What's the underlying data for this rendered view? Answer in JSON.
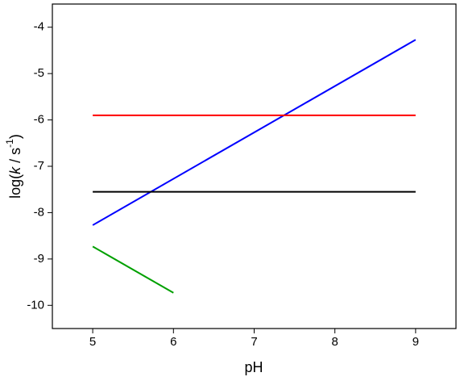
{
  "chart_data": {
    "type": "line",
    "x_label": "pH",
    "y_label": {
      "prefix": "log(",
      "italic": "k",
      "middle": " / s",
      "sup": "-1",
      "suffix": ")"
    },
    "xlim": [
      4.5,
      9.5
    ],
    "xticks": [
      5,
      6,
      7,
      8,
      9
    ],
    "ylim": [
      -10.5,
      -3.5
    ],
    "yticks": [
      -10,
      -9,
      -8,
      -7,
      -6,
      -5,
      -4
    ],
    "grid": false,
    "series": [
      {
        "color": "#0000ff",
        "x": [
          5,
          9
        ],
        "values": [
          -8.27,
          -4.27
        ]
      },
      {
        "color": "#ff0000",
        "x": [
          5,
          9
        ],
        "values": [
          -5.9,
          -5.9
        ]
      },
      {
        "color": "#000000",
        "x": [
          5,
          9
        ],
        "values": [
          -7.55,
          -7.55
        ]
      },
      {
        "color": "#00a000",
        "x": [
          5,
          6
        ],
        "values": [
          -8.73,
          -9.73
        ]
      }
    ]
  }
}
